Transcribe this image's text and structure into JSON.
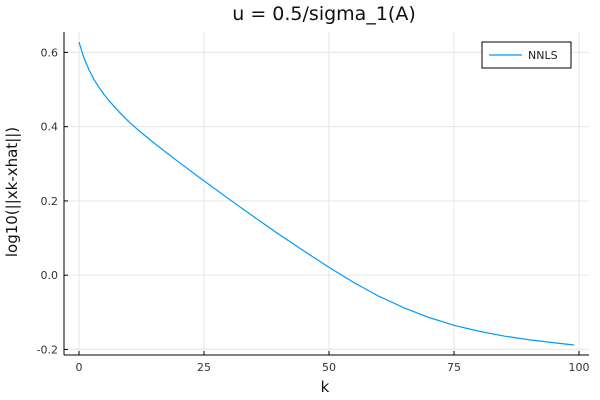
{
  "chart_data": {
    "type": "line",
    "title": "u = 0.5/sigma_1(A)",
    "xlabel": "k",
    "ylabel": "log10(||xk-xhat||)",
    "xlim": [
      -3,
      102
    ],
    "ylim": [
      -0.215,
      0.655
    ],
    "xticks": [
      0,
      25,
      50,
      75,
      100
    ],
    "xtick_labels": [
      "0",
      "25",
      "50",
      "75",
      "100"
    ],
    "yticks": [
      -0.2,
      0.0,
      0.2,
      0.4,
      0.6
    ],
    "ytick_labels": [
      "-0.2",
      "0.0",
      "0.2",
      "0.4",
      "0.6"
    ],
    "grid": true,
    "legend_position": "top-right",
    "colors": {
      "series": "#009AFA",
      "axis": "#000000",
      "grid": "#e6e6e6"
    },
    "series": [
      {
        "name": "NNLS",
        "x": [
          0,
          1,
          2,
          3,
          4,
          5,
          6,
          8,
          10,
          12,
          15,
          20,
          25,
          30,
          35,
          40,
          45,
          50,
          55,
          60,
          65,
          70,
          75,
          80,
          85,
          90,
          95,
          99
        ],
        "y": [
          0.628,
          0.585,
          0.553,
          0.527,
          0.506,
          0.487,
          0.47,
          0.44,
          0.413,
          0.389,
          0.356,
          0.304,
          0.254,
          0.205,
          0.157,
          0.11,
          0.065,
          0.021,
          -0.02,
          -0.057,
          -0.088,
          -0.114,
          -0.135,
          -0.151,
          -0.164,
          -0.174,
          -0.182,
          -0.188
        ]
      }
    ]
  }
}
